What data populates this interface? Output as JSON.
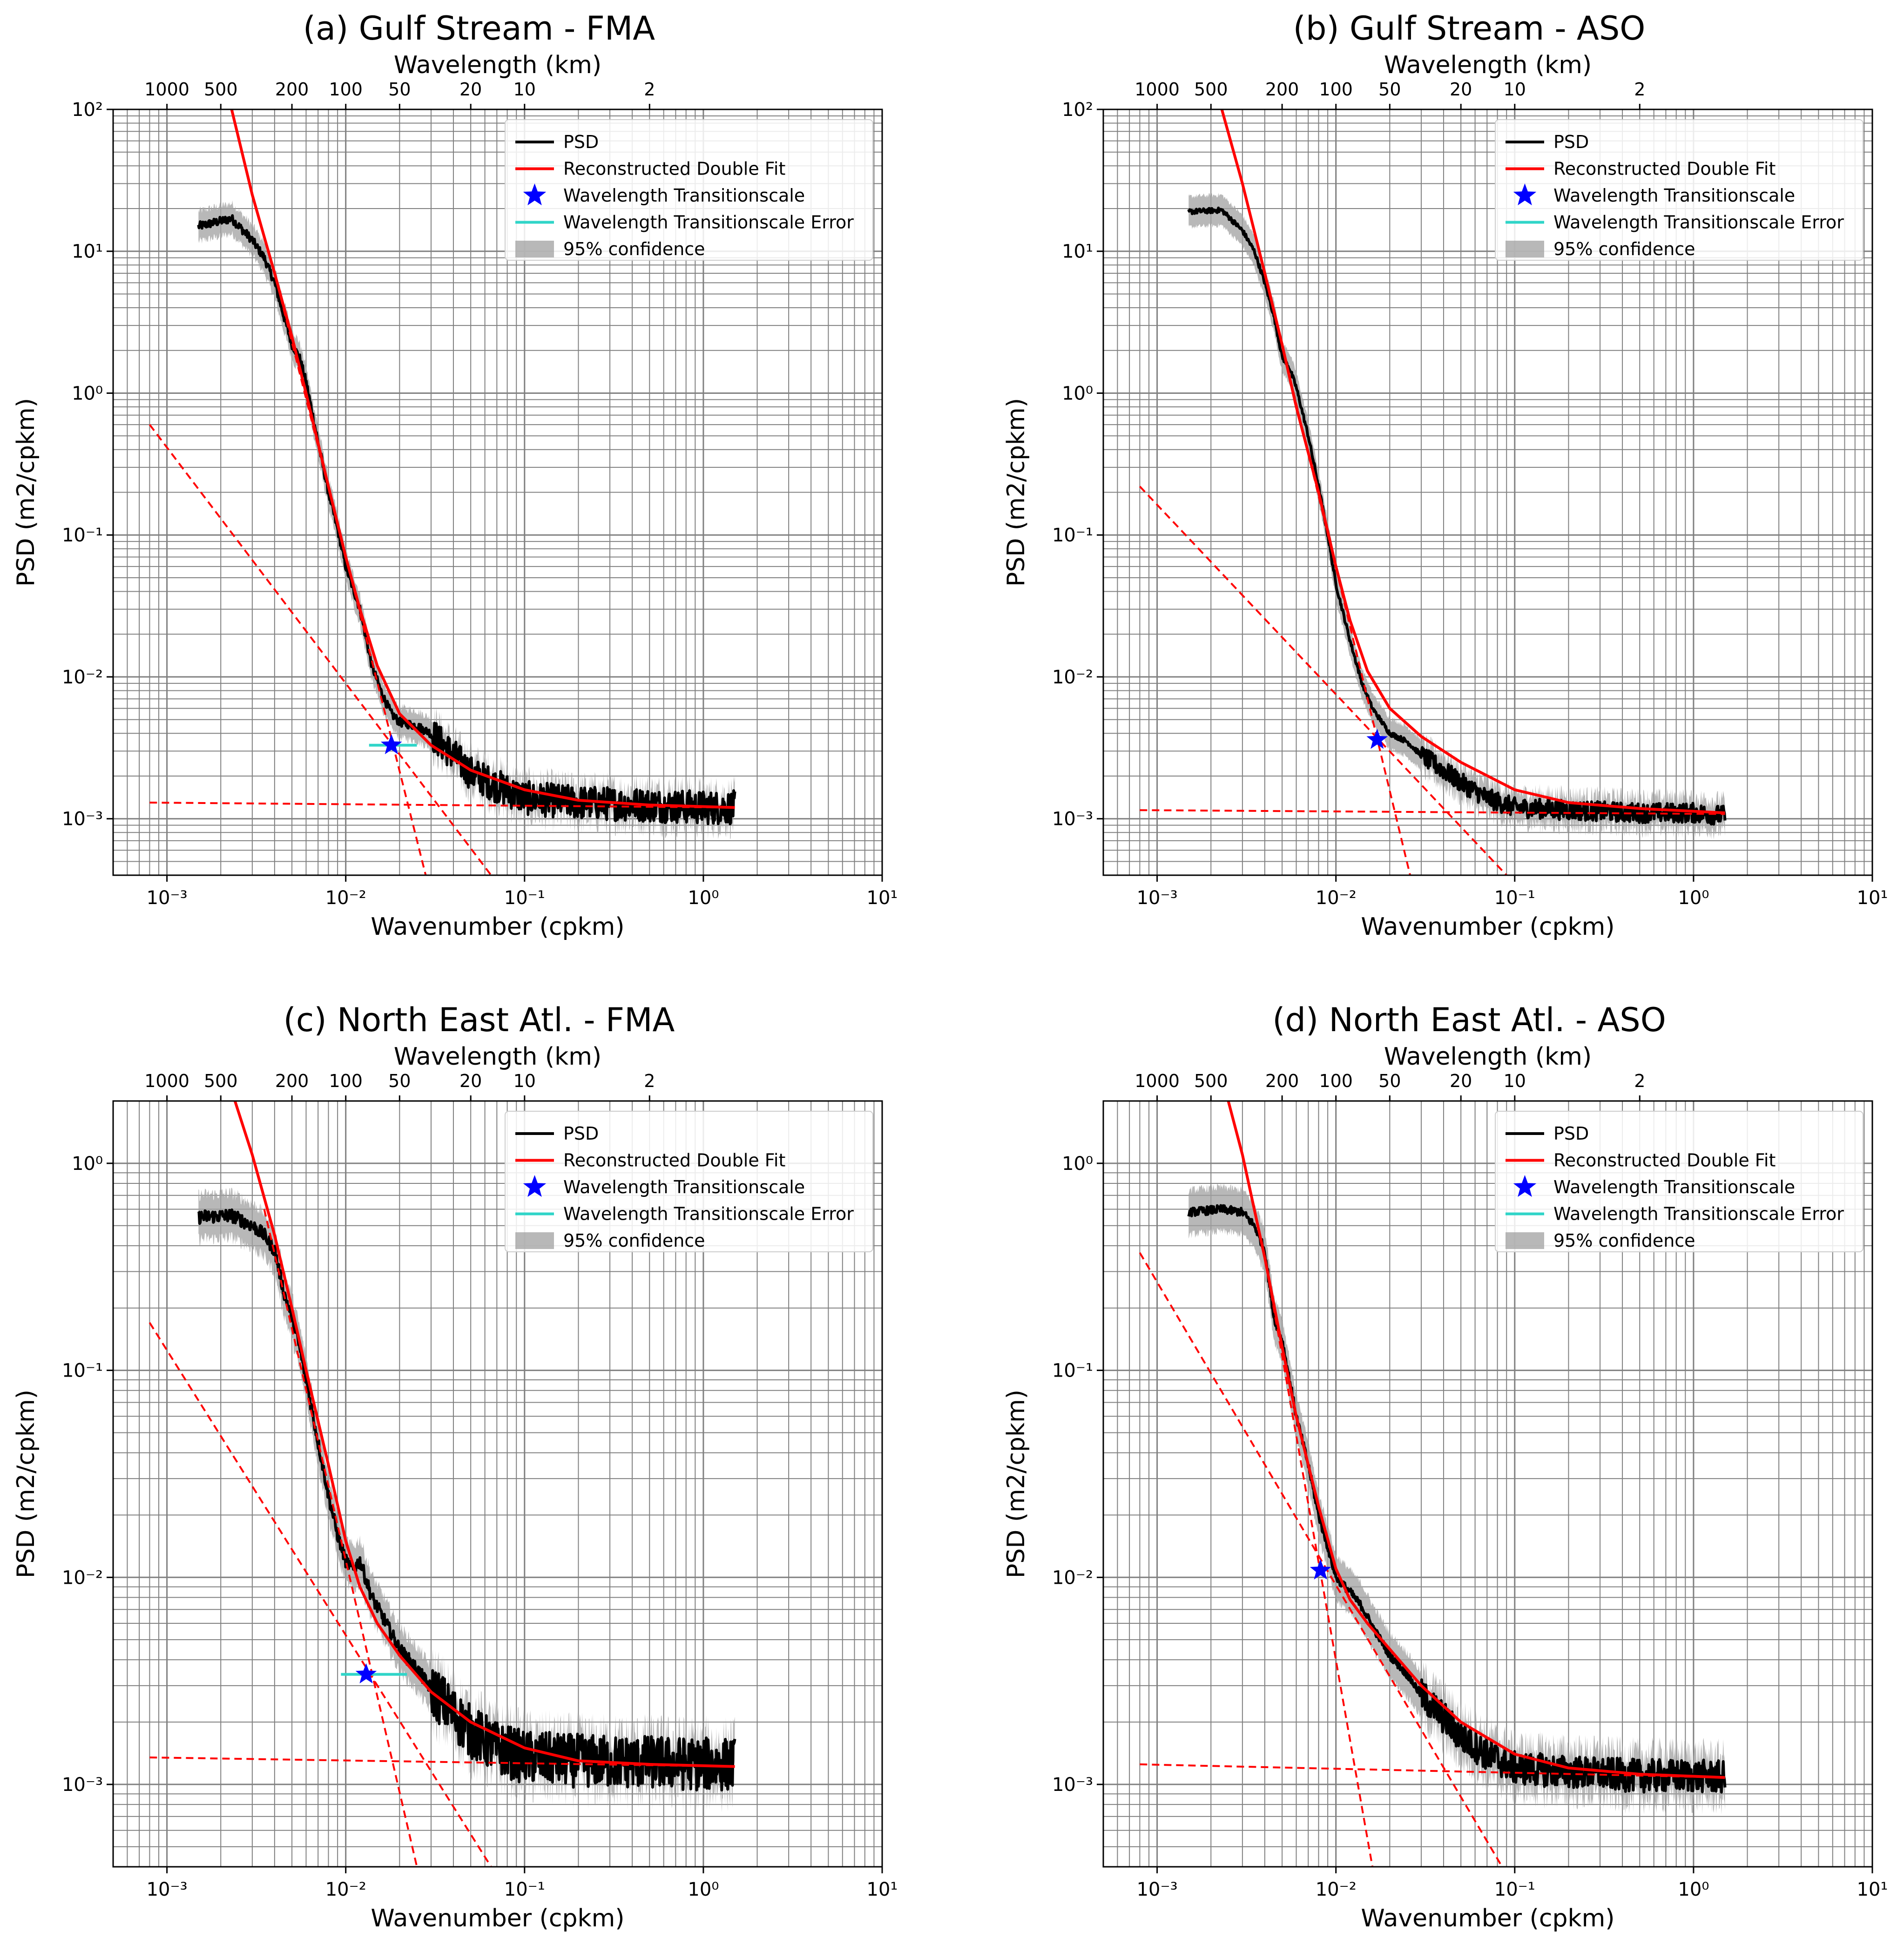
{
  "colors": {
    "psd": "#000000",
    "fit": "#ff0000",
    "star": "#0000ff",
    "error": "#30d5c8",
    "confidence": "#a0a0a0",
    "grid": "#808080"
  },
  "legend": {
    "psd": "PSD",
    "fit": "Reconstructed Double Fit",
    "transition": "Wavelength Transitionscale",
    "error": "Wavelength Transitionscale Error",
    "confidence": "95% confidence"
  },
  "chart_data": [
    {
      "type": "line",
      "title": "(a) Gulf Stream - FMA",
      "xlabel": "Wavenumber (cpkm)",
      "ylabel": "PSD (m2/cpkm)",
      "top_xlabel": "Wavelength (km)",
      "xscale": "log",
      "yscale": "log",
      "xlim": [
        0.0005,
        10
      ],
      "ylim": [
        0.0004,
        100
      ],
      "xticks": [
        [
          "10⁻³",
          0.001
        ],
        [
          "10⁻²",
          0.01
        ],
        [
          "10⁻¹",
          0.1
        ],
        [
          "10⁰",
          1
        ],
        [
          "10¹",
          10
        ]
      ],
      "yticks": [
        [
          "10²",
          100
        ],
        [
          "10¹",
          10
        ],
        [
          "10⁰",
          1
        ],
        [
          "10⁻¹",
          0.1
        ],
        [
          "10⁻²",
          0.01
        ],
        [
          "10⁻³",
          0.001
        ]
      ],
      "top_ticks": [
        "1000",
        "500",
        "200",
        "100",
        "50",
        "20",
        "10",
        "2"
      ],
      "top_tick_values": [
        1000,
        500,
        200,
        100,
        50,
        20,
        10,
        2
      ],
      "psd": {
        "x": [
          0.0015,
          0.0023,
          0.003,
          0.0035,
          0.004,
          0.0045,
          0.005,
          0.0055,
          0.006,
          0.007,
          0.008,
          0.009,
          0.01,
          0.012,
          0.014,
          0.016,
          0.018,
          0.02,
          0.025,
          0.03,
          0.04,
          0.05,
          0.07,
          0.1,
          0.2,
          0.5,
          1.0,
          1.5
        ],
        "y": [
          15,
          17,
          12,
          9,
          6,
          3.5,
          2.2,
          1.8,
          1.2,
          0.45,
          0.2,
          0.11,
          0.06,
          0.03,
          0.012,
          0.0075,
          0.0055,
          0.0048,
          0.0045,
          0.004,
          0.0028,
          0.0021,
          0.0017,
          0.0014,
          0.0013,
          0.00125,
          0.0012,
          0.0012
        ]
      },
      "noise_amplitude": 0.12,
      "fit": {
        "x": [
          0.0023,
          0.003,
          0.004,
          0.005,
          0.006,
          0.008,
          0.01,
          0.012,
          0.015,
          0.02,
          0.03,
          0.05,
          0.1,
          0.2,
          0.5,
          1.5
        ],
        "y": [
          100,
          25,
          7,
          2.5,
          1.0,
          0.22,
          0.07,
          0.03,
          0.012,
          0.0055,
          0.0033,
          0.0022,
          0.0016,
          0.00135,
          0.00125,
          0.0012
        ]
      },
      "fit_dashed": [
        {
          "x": [
            0.0008,
            0.065
          ],
          "y": [
            0.6,
            0.0004
          ]
        },
        {
          "x": [
            0.0008,
            1.5
          ],
          "y": [
            0.0013,
            0.0012
          ]
        },
        {
          "x": [
            0.004,
            0.028
          ],
          "y": [
            7,
            0.0004
          ]
        }
      ],
      "transition": {
        "x": 0.018,
        "y": 0.0033
      },
      "transition_error": {
        "x": [
          0.0135,
          0.025
        ],
        "y": 0.0033
      }
    },
    {
      "type": "line",
      "title": "(b) Gulf Stream - ASO",
      "xlabel": "Wavenumber (cpkm)",
      "ylabel": "PSD (m2/cpkm)",
      "top_xlabel": "Wavelength (km)",
      "xscale": "log",
      "yscale": "log",
      "xlim": [
        0.0005,
        10
      ],
      "ylim": [
        0.0004,
        100
      ],
      "xticks": [
        [
          "10⁻³",
          0.001
        ],
        [
          "10⁻²",
          0.01
        ],
        [
          "10⁻¹",
          0.1
        ],
        [
          "10⁰",
          1
        ],
        [
          "10¹",
          10
        ]
      ],
      "yticks": [
        [
          "10²",
          100
        ],
        [
          "10¹",
          10
        ],
        [
          "10⁰",
          1
        ],
        [
          "10⁻¹",
          0.1
        ],
        [
          "10⁻²",
          0.01
        ],
        [
          "10⁻³",
          0.001
        ]
      ],
      "top_ticks": [
        "1000",
        "500",
        "200",
        "100",
        "50",
        "20",
        "10",
        "2"
      ],
      "top_tick_values": [
        1000,
        500,
        200,
        100,
        50,
        20,
        10,
        2
      ],
      "psd": {
        "x": [
          0.0015,
          0.0023,
          0.003,
          0.0035,
          0.004,
          0.0045,
          0.005,
          0.0055,
          0.006,
          0.007,
          0.008,
          0.009,
          0.01,
          0.012,
          0.014,
          0.016,
          0.02,
          0.025,
          0.03,
          0.04,
          0.05,
          0.07,
          0.1,
          0.2,
          0.5,
          1.0,
          1.5
        ],
        "y": [
          19,
          19.5,
          14,
          10,
          6,
          3.5,
          1.8,
          1.5,
          1.1,
          0.5,
          0.22,
          0.1,
          0.045,
          0.018,
          0.009,
          0.006,
          0.004,
          0.0035,
          0.0028,
          0.0022,
          0.0018,
          0.0014,
          0.0012,
          0.00115,
          0.0011,
          0.0011,
          0.00105
        ]
      },
      "noise_amplitude": 0.07,
      "fit": {
        "x": [
          0.0023,
          0.003,
          0.004,
          0.005,
          0.006,
          0.008,
          0.01,
          0.012,
          0.015,
          0.02,
          0.03,
          0.05,
          0.1,
          0.2,
          0.5,
          1.5
        ],
        "y": [
          100,
          30,
          7,
          2.2,
          0.8,
          0.2,
          0.06,
          0.025,
          0.011,
          0.006,
          0.0038,
          0.0025,
          0.0016,
          0.0013,
          0.00118,
          0.0011
        ]
      },
      "fit_dashed": [
        {
          "x": [
            0.0008,
            0.09
          ],
          "y": [
            0.22,
            0.0004
          ]
        },
        {
          "x": [
            0.0008,
            1.5
          ],
          "y": [
            0.00115,
            0.00108
          ]
        },
        {
          "x": [
            0.004,
            0.026
          ],
          "y": [
            7,
            0.0004
          ]
        }
      ],
      "transition": {
        "x": 0.017,
        "y": 0.0036
      },
      "transition_error": {
        "x": [
          0.016,
          0.018
        ],
        "y": 0.0036
      }
    },
    {
      "type": "line",
      "title": "(c) North East Atl. - FMA",
      "xlabel": "Wavenumber (cpkm)",
      "ylabel": "PSD (m2/cpkm)",
      "top_xlabel": "Wavelength (km)",
      "xscale": "log",
      "yscale": "log",
      "xlim": [
        0.0005,
        10
      ],
      "ylim": [
        0.0004,
        2
      ],
      "xticks": [
        [
          "10⁻³",
          0.001
        ],
        [
          "10⁻²",
          0.01
        ],
        [
          "10⁻¹",
          0.1
        ],
        [
          "10⁰",
          1
        ],
        [
          "10¹",
          10
        ]
      ],
      "yticks": [
        [
          "10⁰",
          1
        ],
        [
          "10⁻¹",
          0.1
        ],
        [
          "10⁻²",
          0.01
        ],
        [
          "10⁻³",
          0.001
        ]
      ],
      "top_ticks": [
        "1000",
        "500",
        "200",
        "100",
        "50",
        "20",
        "10",
        "2"
      ],
      "top_tick_values": [
        1000,
        500,
        200,
        100,
        50,
        20,
        10,
        2
      ],
      "psd": {
        "x": [
          0.0015,
          0.0023,
          0.003,
          0.0035,
          0.004,
          0.0045,
          0.005,
          0.0055,
          0.006,
          0.007,
          0.008,
          0.009,
          0.01,
          0.011,
          0.012,
          0.014,
          0.016,
          0.02,
          0.025,
          0.03,
          0.04,
          0.05,
          0.07,
          0.1,
          0.2,
          0.5,
          1.0,
          1.5
        ],
        "y": [
          0.55,
          0.56,
          0.5,
          0.45,
          0.38,
          0.24,
          0.18,
          0.13,
          0.09,
          0.045,
          0.025,
          0.016,
          0.012,
          0.011,
          0.012,
          0.008,
          0.0065,
          0.0045,
          0.0036,
          0.0029,
          0.0022,
          0.0018,
          0.0015,
          0.00135,
          0.0013,
          0.00128,
          0.00125,
          0.00125
        ]
      },
      "noise_amplitude": 0.13,
      "fit": {
        "x": [
          0.0024,
          0.003,
          0.004,
          0.005,
          0.006,
          0.008,
          0.01,
          0.012,
          0.015,
          0.02,
          0.03,
          0.05,
          0.1,
          0.2,
          0.5,
          1.5
        ],
        "y": [
          2.0,
          1.1,
          0.45,
          0.2,
          0.1,
          0.035,
          0.015,
          0.009,
          0.006,
          0.0042,
          0.0028,
          0.002,
          0.0015,
          0.0013,
          0.00125,
          0.00122
        ]
      },
      "fit_dashed": [
        {
          "x": [
            0.0008,
            0.065
          ],
          "y": [
            0.17,
            0.0004
          ]
        },
        {
          "x": [
            0.0008,
            1.5
          ],
          "y": [
            0.00135,
            0.00122
          ]
        },
        {
          "x": [
            0.0035,
            0.025
          ],
          "y": [
            0.6,
            0.0004
          ]
        }
      ],
      "transition": {
        "x": 0.013,
        "y": 0.0034
      },
      "transition_error": {
        "x": [
          0.0094,
          0.022
        ],
        "y": 0.0034
      }
    },
    {
      "type": "line",
      "title": "(d) North East Atl. - ASO",
      "xlabel": "Wavenumber (cpkm)",
      "ylabel": "PSD (m2/cpkm)",
      "top_xlabel": "Wavelength (km)",
      "xscale": "log",
      "yscale": "log",
      "xlim": [
        0.0005,
        10
      ],
      "ylim": [
        0.0004,
        2
      ],
      "xticks": [
        [
          "10⁻³",
          0.001
        ],
        [
          "10⁻²",
          0.01
        ],
        [
          "10⁻¹",
          0.1
        ],
        [
          "10⁰",
          1
        ],
        [
          "10¹",
          10
        ]
      ],
      "yticks": [
        [
          "10⁰",
          1
        ],
        [
          "10⁻¹",
          0.1
        ],
        [
          "10⁻²",
          0.01
        ],
        [
          "10⁻³",
          0.001
        ]
      ],
      "top_ticks": [
        "1000",
        "500",
        "200",
        "100",
        "50",
        "20",
        "10",
        "2"
      ],
      "top_tick_values": [
        1000,
        500,
        200,
        100,
        50,
        20,
        10,
        2
      ],
      "psd": {
        "x": [
          0.0015,
          0.0023,
          0.003,
          0.0035,
          0.004,
          0.0045,
          0.005,
          0.0055,
          0.006,
          0.007,
          0.008,
          0.009,
          0.01,
          0.012,
          0.014,
          0.016,
          0.02,
          0.025,
          0.03,
          0.04,
          0.05,
          0.07,
          0.1,
          0.2,
          0.5,
          1.0,
          1.5
        ],
        "y": [
          0.58,
          0.6,
          0.58,
          0.5,
          0.38,
          0.18,
          0.14,
          0.09,
          0.06,
          0.035,
          0.02,
          0.014,
          0.01,
          0.0085,
          0.0072,
          0.0058,
          0.0042,
          0.0034,
          0.0027,
          0.0021,
          0.0017,
          0.0014,
          0.0012,
          0.00115,
          0.0011,
          0.0011,
          0.00108
        ]
      },
      "noise_amplitude": 0.08,
      "fit": {
        "x": [
          0.0025,
          0.003,
          0.004,
          0.005,
          0.006,
          0.008,
          0.01,
          0.012,
          0.015,
          0.02,
          0.03,
          0.05,
          0.1,
          0.2,
          0.5,
          1.5
        ],
        "y": [
          2.0,
          1.1,
          0.35,
          0.13,
          0.06,
          0.022,
          0.011,
          0.0078,
          0.006,
          0.0045,
          0.003,
          0.002,
          0.0014,
          0.0012,
          0.00112,
          0.00108
        ]
      },
      "fit_dashed": [
        {
          "x": [
            0.0008,
            0.085
          ],
          "y": [
            0.37,
            0.0004
          ]
        },
        {
          "x": [
            0.0008,
            1.5
          ],
          "y": [
            0.00125,
            0.00108
          ]
        },
        {
          "x": [
            0.004,
            0.016
          ],
          "y": [
            0.35,
            0.0004
          ]
        }
      ],
      "transition": {
        "x": 0.0082,
        "y": 0.0108
      },
      "transition_error": {
        "x": [
          0.0079,
          0.0086
        ],
        "y": 0.0108
      }
    }
  ]
}
